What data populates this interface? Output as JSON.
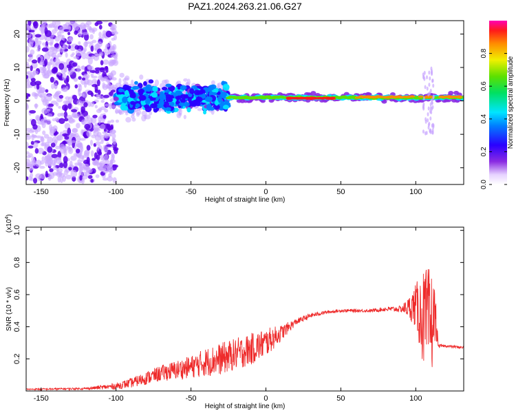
{
  "title": "PAZ1.2024.263.21.06.G27",
  "colors": {
    "snr_line": "#ee2a2a",
    "spec_faint": "#c9a6ff",
    "spec_core": "#5a00e6"
  },
  "chart_data": [
    {
      "type": "heatmap",
      "xlabel": "Height of straight line (km)",
      "ylabel": "Frequency (Hz)",
      "xlim": [
        -160,
        132
      ],
      "ylim": [
        -25,
        24
      ],
      "xticks": [
        -150,
        -100,
        -50,
        0,
        50,
        100
      ],
      "yticks": [
        -20,
        -10,
        0,
        10,
        20
      ],
      "colorbar": {
        "label": "Normalized spectral amplitude",
        "range": [
          0,
          1
        ],
        "ticks": [
          "0.0",
          "0.2",
          "0.4",
          "0.6",
          "0.8"
        ],
        "colormap": "rainbow-from-white"
      },
      "features": [
        {
          "region": "scattered noise",
          "x": [
            -160,
            -100
          ],
          "freq_spread_hz": 24,
          "amplitude": 0.15
        },
        {
          "region": "clustered band",
          "x": [
            -100,
            -25
          ],
          "freq_center_hz": 1,
          "freq_spread_hz": 6,
          "amplitude": 0.3
        },
        {
          "region": "narrow band",
          "x": [
            -25,
            132
          ],
          "freq_center_hz": 1,
          "freq_spread_hz": 1,
          "amplitude": 0.9
        },
        {
          "region": "spike",
          "x": [
            105,
            112
          ],
          "freq_range_hz": [
            -10,
            10
          ],
          "amplitude": 0.2
        }
      ]
    },
    {
      "type": "line",
      "xlabel": "Height of straight line (km)",
      "ylabel": "SNR (10 * v/v)",
      "yunit": "(x10^4)",
      "ytick_multiplier": "(x10",
      "ytick_exponent": "4",
      "xlim": [
        -160,
        132
      ],
      "ylim": [
        0,
        1.02
      ],
      "xticks": [
        -150,
        -100,
        -50,
        0,
        50,
        100
      ],
      "yticks": [
        0.2,
        0.4,
        0.6,
        0.8,
        1.0
      ],
      "ytick_labels": [
        "0.2",
        "0.4",
        "0.6",
        "0.8",
        "1.0"
      ],
      "series": [
        {
          "x": [
            -160,
            -120,
            -100,
            -90,
            -80,
            -70,
            -60,
            -50,
            -40,
            -30,
            -20,
            -10,
            0,
            10,
            20,
            30,
            40,
            50,
            60,
            70,
            80,
            90,
            95,
            100,
            105,
            110,
            113,
            115,
            120,
            132
          ],
          "y": [
            0.01,
            0.015,
            0.03,
            0.05,
            0.08,
            0.11,
            0.13,
            0.15,
            0.18,
            0.2,
            0.23,
            0.26,
            0.3,
            0.36,
            0.43,
            0.47,
            0.49,
            0.5,
            0.5,
            0.5,
            0.51,
            0.51,
            0.52,
            0.53,
            0.45,
            0.4,
            0.48,
            0.28,
            0.28,
            0.27
          ],
          "noise": [
            0.005,
            0.007,
            0.02,
            0.03,
            0.04,
            0.05,
            0.06,
            0.07,
            0.09,
            0.1,
            0.1,
            0.1,
            0.09,
            0.05,
            0.02,
            0.015,
            0.01,
            0.01,
            0.01,
            0.01,
            0.015,
            0.02,
            0.06,
            0.14,
            0.3,
            0.38,
            0.15,
            0.01,
            0.008,
            0.008
          ]
        }
      ]
    }
  ]
}
